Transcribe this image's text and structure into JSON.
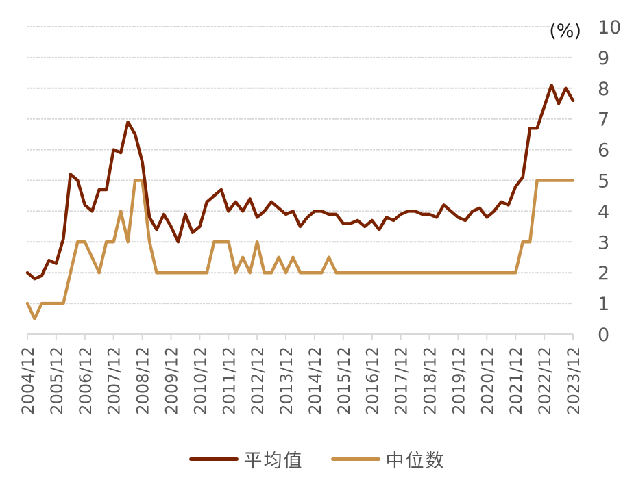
{
  "chart_data": {
    "type": "line",
    "title": "",
    "xlabel": "",
    "ylabel": "(%)",
    "unit_label": "(%)",
    "ylim": [
      0,
      10
    ],
    "y_ticks": [
      "0",
      "1",
      "2",
      "3",
      "4",
      "5",
      "6",
      "7",
      "8",
      "9",
      "10"
    ],
    "y_axis_position": "right",
    "grid": true,
    "legend_position": "bottom",
    "x_tick_labels": [
      "2004/12",
      "2005/12",
      "2006/12",
      "2007/12",
      "2008/12",
      "2009/12",
      "2010/12",
      "2011/12",
      "2012/12",
      "2013/12",
      "2014/12",
      "2015/12",
      "2016/12",
      "2017/12",
      "2018/12",
      "2019/12",
      "2020/12",
      "2021/12",
      "2022/12",
      "2023/12"
    ],
    "x_frequency": "quarterly",
    "x_start": "2004/12",
    "series": [
      {
        "name": "平均值",
        "color": "#7B2200",
        "values": [
          2.0,
          1.8,
          1.9,
          2.4,
          2.3,
          3.1,
          5.2,
          5.0,
          4.2,
          4.0,
          4.7,
          4.7,
          6.0,
          5.9,
          6.9,
          6.5,
          5.6,
          3.8,
          3.4,
          3.9,
          3.5,
          3.0,
          3.9,
          3.3,
          3.5,
          4.3,
          4.5,
          4.7,
          4.0,
          4.3,
          4.0,
          4.4,
          3.8,
          4.0,
          4.3,
          4.1,
          3.9,
          4.0,
          3.5,
          3.8,
          4.0,
          4.0,
          3.9,
          3.9,
          3.6,
          3.6,
          3.7,
          3.5,
          3.7,
          3.4,
          3.8,
          3.7,
          3.9,
          4.0,
          4.0,
          3.9,
          3.9,
          3.8,
          4.2,
          4.0,
          3.8,
          3.7,
          4.0,
          4.1,
          3.8,
          4.0,
          4.3,
          4.2,
          4.8,
          5.1,
          6.7,
          6.7,
          7.4,
          8.1,
          7.5,
          8.0,
          7.6
        ]
      },
      {
        "name": "中位数",
        "color": "#C8914A",
        "values": [
          1.0,
          0.5,
          1.0,
          1.0,
          1.0,
          1.0,
          2.0,
          3.0,
          3.0,
          2.5,
          2.0,
          3.0,
          3.0,
          4.0,
          3.0,
          5.0,
          5.0,
          3.0,
          2.0,
          2.0,
          2.0,
          2.0,
          2.0,
          2.0,
          2.0,
          2.0,
          3.0,
          3.0,
          3.0,
          2.0,
          2.5,
          2.0,
          3.0,
          2.0,
          2.0,
          2.5,
          2.0,
          2.5,
          2.0,
          2.0,
          2.0,
          2.0,
          2.5,
          2.0,
          2.0,
          2.0,
          2.0,
          2.0,
          2.0,
          2.0,
          2.0,
          2.0,
          2.0,
          2.0,
          2.0,
          2.0,
          2.0,
          2.0,
          2.0,
          2.0,
          2.0,
          2.0,
          2.0,
          2.0,
          2.0,
          2.0,
          2.0,
          2.0,
          2.0,
          3.0,
          3.0,
          5.0,
          5.0,
          5.0,
          5.0,
          5.0,
          5.0
        ]
      }
    ]
  },
  "legend": {
    "items": [
      {
        "label": "平均值",
        "color": "#7B2200"
      },
      {
        "label": "中位数",
        "color": "#C8914A"
      }
    ]
  },
  "style": {
    "grid_color": "#D9D9D9",
    "tick_label_color": "#595959",
    "unit_label_color": "#1A1A1A"
  }
}
